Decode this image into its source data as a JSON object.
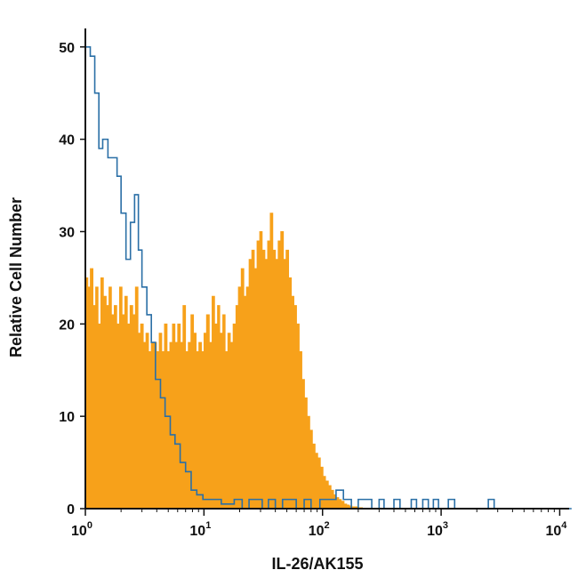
{
  "chart_data": {
    "type": "area",
    "title": "",
    "xlabel": "IL-26/AK155",
    "ylabel": "Relative Cell Number",
    "x_scale": "log",
    "xlim": [
      1,
      12000
    ],
    "ylim": [
      0,
      52
    ],
    "y_ticks": [
      0,
      10,
      20,
      30,
      40,
      50
    ],
    "x_ticks": [
      {
        "value": 1,
        "base": "10",
        "exp": "0"
      },
      {
        "value": 10,
        "base": "10",
        "exp": "1"
      },
      {
        "value": 100,
        "base": "10",
        "exp": "2"
      },
      {
        "value": 1000,
        "base": "10",
        "exp": "3"
      },
      {
        "value": 10000,
        "base": "10",
        "exp": "4"
      }
    ],
    "grid": false,
    "legend": "none",
    "series": [
      {
        "style": "filled",
        "color": "#F7A11A",
        "x": [
          1.0,
          1.05,
          1.1,
          1.16,
          1.22,
          1.28,
          1.35,
          1.42,
          1.5,
          1.58,
          1.66,
          1.75,
          1.84,
          1.94,
          2.04,
          2.15,
          2.26,
          2.38,
          2.51,
          2.64,
          2.78,
          2.92,
          3.08,
          3.24,
          3.41,
          3.59,
          3.78,
          3.98,
          4.19,
          4.41,
          4.64,
          4.89,
          5.15,
          5.42,
          5.7,
          6.0,
          6.32,
          6.65,
          7.0,
          7.37,
          7.76,
          8.17,
          8.6,
          9.05,
          9.53,
          10.0,
          10.5,
          11.1,
          11.7,
          12.3,
          13.0,
          13.6,
          14.4,
          15.1,
          15.9,
          16.7,
          17.6,
          18.6,
          19.5,
          20.6,
          21.7,
          22.8,
          24.0,
          25.3,
          26.6,
          28.0,
          29.5,
          31.0,
          32.7,
          34.4,
          36.2,
          38.1,
          40.1,
          42.2,
          44.4,
          46.8,
          49.2,
          51.8,
          54.6,
          57.4,
          60.4,
          63.6,
          67.0,
          70.5,
          74.2,
          78.1,
          82.2,
          86.6,
          91.1,
          95.9,
          101,
          106,
          112,
          118,
          124,
          130,
          137,
          144,
          152,
          160,
          168,
          177,
          186,
          196,
          206,
          217,
          229,
          241,
          253,
          267,
          281,
          295,
          311,
          327
        ],
        "values": [
          25,
          24,
          26,
          22,
          24,
          20,
          25,
          23,
          22,
          24,
          21,
          22,
          20,
          24,
          21,
          23,
          20,
          22,
          21,
          24,
          19,
          20,
          18,
          19,
          17,
          18,
          18,
          17,
          19,
          17,
          20,
          17,
          18,
          20,
          18,
          20,
          18,
          22,
          17,
          18,
          21,
          19,
          17,
          18,
          17,
          19,
          21,
          18,
          23,
          20,
          22,
          19,
          21,
          17,
          19,
          18,
          20,
          22,
          24,
          26,
          23,
          24,
          27,
          28,
          26,
          29,
          30,
          28,
          27,
          29,
          32,
          28,
          27,
          29,
          30,
          27,
          28,
          25,
          23,
          22,
          20,
          17,
          14,
          12,
          10,
          8.5,
          7,
          6,
          5.5,
          4.5,
          3.5,
          3,
          2.5,
          2,
          1.5,
          1.2,
          1,
          0.8,
          0.5,
          0.4,
          0.3,
          0.2,
          0.2,
          0.1,
          0.1,
          0,
          0,
          0,
          0,
          0,
          0,
          0,
          0,
          0
        ]
      },
      {
        "style": "line",
        "color": "#2A6FA6",
        "x": [
          1.0,
          1.1,
          1.2,
          1.3,
          1.4,
          1.55,
          1.7,
          1.85,
          2.0,
          2.2,
          2.4,
          2.6,
          2.8,
          3.0,
          3.3,
          3.6,
          3.9,
          4.3,
          4.7,
          5.2,
          5.7,
          6.3,
          7.0,
          7.8,
          8.7,
          9.8,
          11,
          12.5,
          14,
          16,
          18,
          21,
          24,
          27,
          31,
          35,
          40,
          46,
          52,
          60,
          70,
          80,
          95,
          110,
          130,
          150,
          175,
          200,
          230,
          260,
          300,
          330,
          360,
          400,
          450,
          500,
          560,
          620,
          700,
          780,
          860,
          950,
          1050,
          1150,
          1300,
          1450,
          1600,
          1800,
          2000,
          2250,
          2500,
          2800,
          3100,
          3500,
          4000,
          4500,
          5000,
          6000,
          7000,
          8000,
          9000,
          10000,
          11000,
          12000
        ],
        "values": [
          50,
          49,
          45,
          39,
          40,
          38,
          38,
          36,
          32,
          27,
          31,
          34,
          28,
          24,
          21,
          18,
          14,
          12,
          10,
          8,
          7,
          5,
          4,
          2,
          1.5,
          1,
          1,
          1,
          0.5,
          0.5,
          1,
          0,
          1,
          1,
          0,
          1,
          0,
          1,
          1,
          0,
          1,
          0,
          1,
          1,
          2,
          1,
          0,
          1,
          1,
          0,
          1,
          0,
          0,
          1,
          0,
          0,
          1,
          0,
          1,
          0,
          1,
          0,
          0,
          1,
          0,
          0,
          0,
          0,
          0,
          0,
          1,
          0,
          0,
          0,
          0,
          0,
          0,
          0,
          0,
          0,
          0,
          0,
          0,
          0
        ]
      }
    ]
  }
}
